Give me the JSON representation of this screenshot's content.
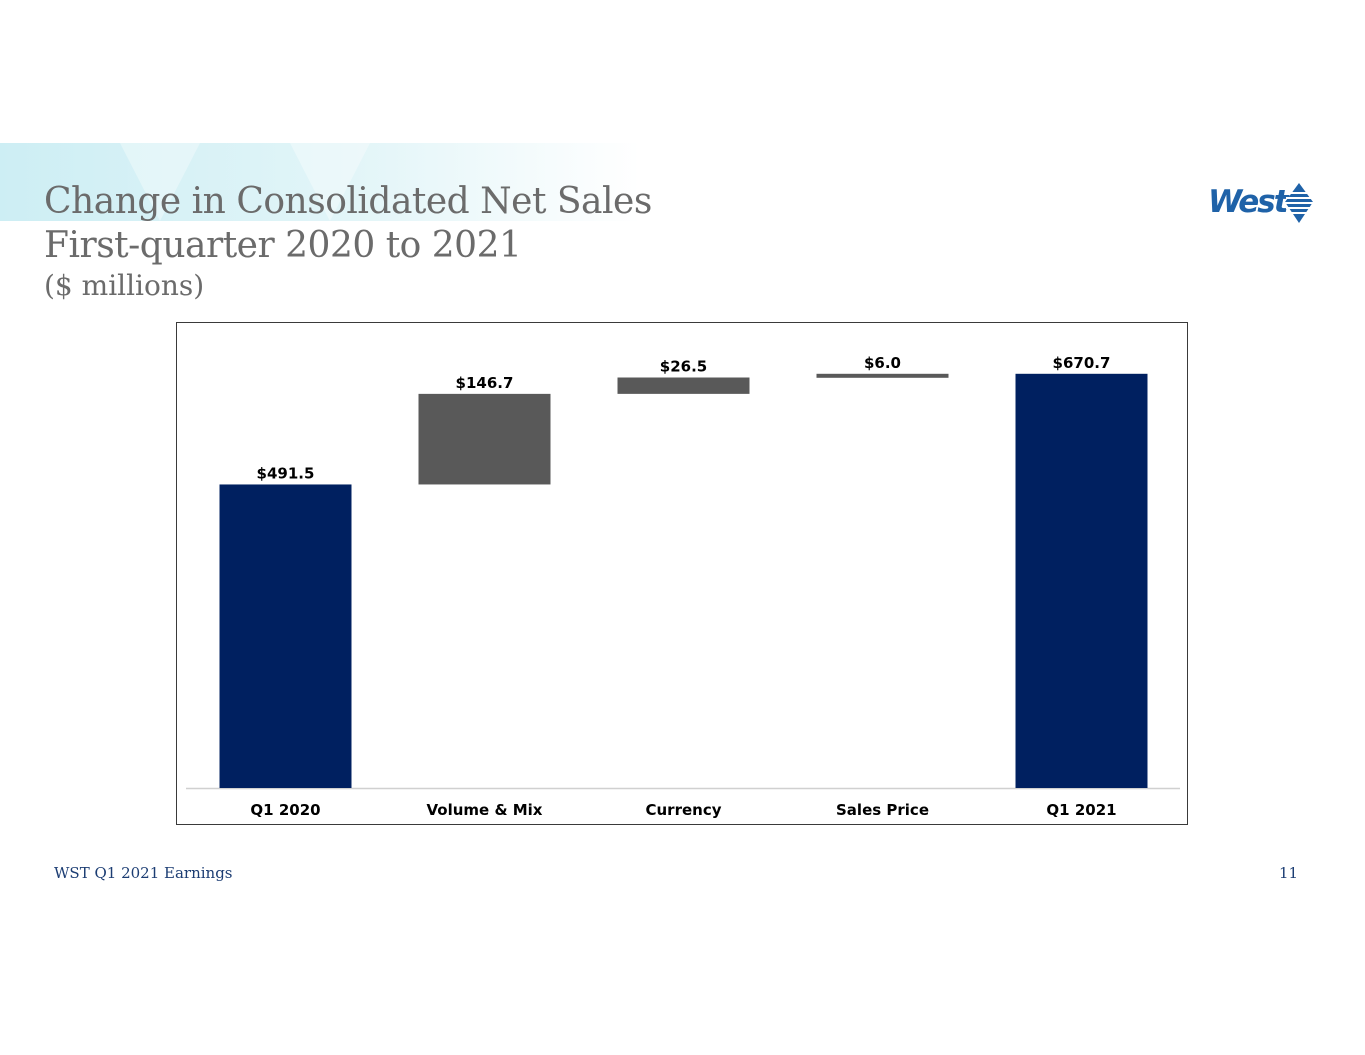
{
  "slide": {
    "title": "Change in Consolidated Net Sales",
    "subtitle": "First-quarter 2020 to 2021",
    "unit_note": "($ millions)",
    "logo_text": "West",
    "footer": "WST Q1 2021 Earnings",
    "page_number": "11"
  },
  "colors": {
    "total_bar": "#002060",
    "delta_bar": "#595959",
    "title": "#6b6b6b",
    "footer": "#1c3d73",
    "logo": "#1f62a8"
  },
  "chart_data": {
    "type": "bar",
    "subtype": "waterfall",
    "categories": [
      "Q1 2020",
      "Volume & Mix",
      "Currency",
      "Sales Price",
      "Q1 2021"
    ],
    "values": [
      491.5,
      146.7,
      26.5,
      6.0,
      670.7
    ],
    "kinds": [
      "total",
      "delta",
      "delta",
      "delta",
      "total"
    ],
    "data_labels": [
      "$491.5",
      "$146.7",
      "$26.5",
      "$6.0",
      "$670.7"
    ],
    "ylim": [
      0,
      740
    ],
    "grid": false,
    "legend": "none"
  }
}
